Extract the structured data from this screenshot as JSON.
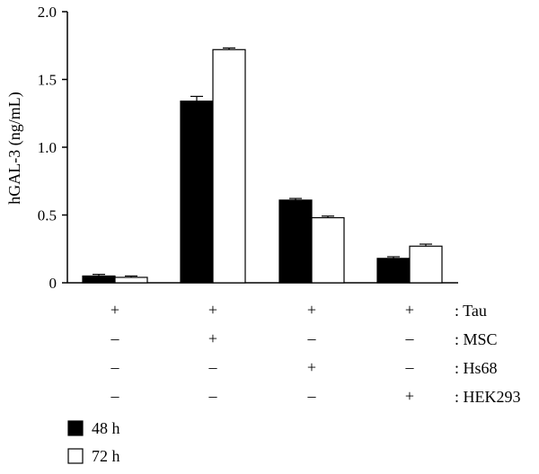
{
  "chart_data": {
    "type": "bar",
    "ylabel": "hGAL-3 (ng/mL)",
    "ylim": [
      0,
      2.0
    ],
    "yticks": [
      {
        "value": 0,
        "label": "0"
      },
      {
        "value": 0.5,
        "label": "0.5"
      },
      {
        "value": 1.0,
        "label": "1.0"
      },
      {
        "value": 1.5,
        "label": "1.5"
      },
      {
        "value": 2.0,
        "label": "2.0"
      }
    ],
    "groups": 4,
    "series": [
      {
        "name": "48 h",
        "color": "#000000",
        "values": [
          0.05,
          1.34,
          0.61,
          0.18
        ],
        "errors": [
          0.012,
          0.035,
          0.012,
          0.012
        ]
      },
      {
        "name": "72 h",
        "color": "#ffffff",
        "values": [
          0.04,
          1.72,
          0.48,
          0.27
        ],
        "errors": [
          0.01,
          0.012,
          0.012,
          0.015
        ]
      }
    ],
    "conditions": [
      {
        "label": ": Tau",
        "marks": [
          "+",
          "+",
          "+",
          "+"
        ]
      },
      {
        "label": ": MSC",
        "marks": [
          "–",
          "+",
          "–",
          "–"
        ]
      },
      {
        "label": ": Hs68",
        "marks": [
          "–",
          "–",
          "+",
          "–"
        ]
      },
      {
        "label": ": HEK293",
        "marks": [
          "–",
          "–",
          "–",
          "+"
        ]
      }
    ],
    "legend_position": "bottom-left"
  }
}
